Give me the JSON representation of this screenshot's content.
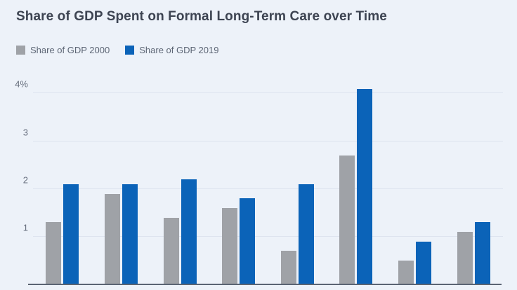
{
  "title": "Share of GDP Spent on Formal Long-Term Care over Time",
  "legend": {
    "items": [
      {
        "label": "Share of GDP 2000",
        "color": "#9fa2a7"
      },
      {
        "label": "Share of GDP 2019",
        "color": "#0b63b8"
      }
    ]
  },
  "colors": {
    "background": "#edf2f9",
    "title_text": "#3d4452",
    "legend_text": "#5d6675",
    "tick_text": "#68707f",
    "gridline": "#dde4ef",
    "axis_line": "#5b6473",
    "series_2000": "#9fa2a7",
    "series_2019": "#0b63b8"
  },
  "chart_data": {
    "type": "bar",
    "title": "Share of GDP Spent on Formal Long-Term Care over Time",
    "categories": [
      "",
      "",
      "",
      "",
      "",
      "",
      "",
      ""
    ],
    "x_axis_labels_visible": false,
    "series": [
      {
        "name": "Share of GDP 2000",
        "color": "#9fa2a7",
        "values": [
          1.3,
          1.9,
          1.4,
          1.6,
          0.7,
          2.7,
          0.5,
          1.1
        ]
      },
      {
        "name": "Share of GDP 2019",
        "color": "#0b63b8",
        "values": [
          2.1,
          2.1,
          2.2,
          1.8,
          2.1,
          4.1,
          0.9,
          1.3
        ]
      }
    ],
    "xlabel": "",
    "ylabel": "",
    "ylim": [
      0,
      4.3
    ],
    "yticks": [
      {
        "value": 1,
        "label": "1"
      },
      {
        "value": 2,
        "label": "2"
      },
      {
        "value": 3,
        "label": "3"
      },
      {
        "value": 4,
        "label": "4%"
      }
    ],
    "grid": true,
    "legend_position": "top-left"
  }
}
